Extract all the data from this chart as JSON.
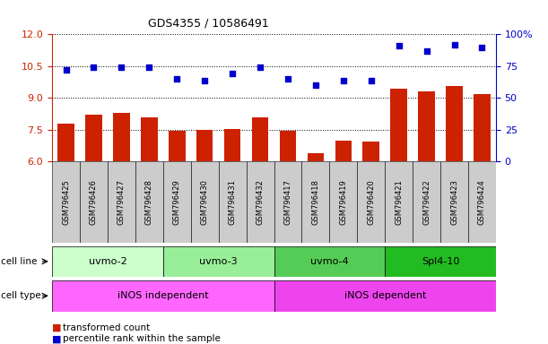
{
  "title": "GDS4355 / 10586491",
  "samples": [
    "GSM796425",
    "GSM796426",
    "GSM796427",
    "GSM796428",
    "GSM796429",
    "GSM796430",
    "GSM796431",
    "GSM796432",
    "GSM796417",
    "GSM796418",
    "GSM796419",
    "GSM796420",
    "GSM796421",
    "GSM796422",
    "GSM796423",
    "GSM796424"
  ],
  "transformed_count": [
    7.8,
    8.2,
    8.3,
    8.1,
    7.45,
    7.5,
    7.55,
    8.1,
    7.45,
    6.4,
    7.0,
    6.95,
    9.45,
    9.3,
    9.55,
    9.2
  ],
  "percentile_rank": [
    72,
    74,
    74,
    74,
    65,
    64,
    69,
    74,
    65,
    60,
    64,
    64,
    91,
    87,
    92,
    90
  ],
  "left_ylim": [
    6,
    12
  ],
  "left_yticks": [
    6,
    7.5,
    9,
    10.5,
    12
  ],
  "right_ylim": [
    0,
    100
  ],
  "right_yticks": [
    0,
    25,
    50,
    75,
    100
  ],
  "right_yticklabels": [
    "0",
    "25",
    "50",
    "75",
    "100%"
  ],
  "bar_color": "#cc2200",
  "dot_color": "#0000cc",
  "left_axis_color": "#cc2200",
  "right_axis_color": "#0000cc",
  "cell_line_groups": [
    {
      "label": "uvmo-2",
      "start": 0,
      "end": 3,
      "color": "#ccffcc"
    },
    {
      "label": "uvmo-3",
      "start": 4,
      "end": 7,
      "color": "#99ee99"
    },
    {
      "label": "uvmo-4",
      "start": 8,
      "end": 11,
      "color": "#55cc55"
    },
    {
      "label": "Spl4-10",
      "start": 12,
      "end": 15,
      "color": "#22bb22"
    }
  ],
  "cell_type_groups": [
    {
      "label": "iNOS independent",
      "start": 0,
      "end": 7,
      "color": "#ff66ff"
    },
    {
      "label": "iNOS dependent",
      "start": 8,
      "end": 15,
      "color": "#ee44ee"
    }
  ],
  "sample_box_color": "#cccccc",
  "fig_width": 6.11,
  "fig_height": 3.84,
  "dpi": 100
}
